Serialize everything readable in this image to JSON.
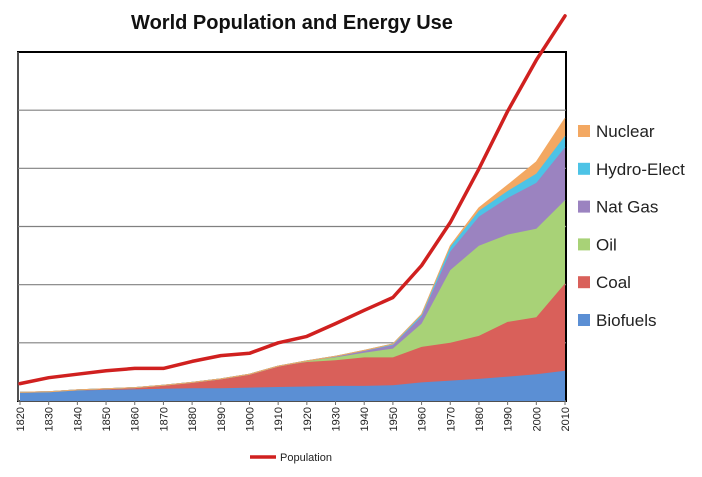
{
  "chart_data": {
    "type": "area",
    "title": "World Population and Energy Use",
    "xlabel": "",
    "ylabel": "",
    "x": [
      1820,
      1830,
      1840,
      1850,
      1860,
      1870,
      1880,
      1890,
      1900,
      1910,
      1920,
      1930,
      1940,
      1950,
      1960,
      1970,
      1980,
      1990,
      2000,
      2010
    ],
    "x_tick_labels": [
      "1820",
      "1830",
      "1840",
      "1850",
      "1860",
      "1870",
      "1880",
      "1890",
      "1900",
      "1910",
      "1920",
      "1930",
      "1940",
      "1950",
      "1960",
      "1970",
      "1980",
      "1990",
      "2000",
      "2010"
    ],
    "ylim": [
      0,
      6
    ],
    "y_gridlines": [
      1,
      2,
      3,
      4,
      5
    ],
    "grid": true,
    "y_tick_labels_shown": false,
    "legend_position": "right",
    "stacked_area_series": [
      {
        "name": "Biofuels",
        "color": "#5B8FD4",
        "values": [
          0.15,
          0.16,
          0.18,
          0.19,
          0.2,
          0.21,
          0.22,
          0.22,
          0.23,
          0.24,
          0.25,
          0.26,
          0.26,
          0.27,
          0.32,
          0.35,
          0.38,
          0.42,
          0.46,
          0.52
        ]
      },
      {
        "name": "Coal",
        "color": "#D9605A",
        "values": [
          0.0,
          0.0,
          0.01,
          0.02,
          0.03,
          0.06,
          0.1,
          0.16,
          0.23,
          0.36,
          0.42,
          0.44,
          0.49,
          0.48,
          0.61,
          0.65,
          0.74,
          0.94,
          0.98,
          1.5
        ]
      },
      {
        "name": "Oil",
        "color": "#A8D277",
        "values": [
          0.0,
          0.0,
          0.0,
          0.0,
          0.0,
          0.0,
          0.0,
          0.0,
          0.0,
          0.0,
          0.02,
          0.05,
          0.08,
          0.15,
          0.4,
          1.25,
          1.55,
          1.5,
          1.52,
          1.43
        ]
      },
      {
        "name": "Nat Gas",
        "color": "#9B83C0",
        "values": [
          0.0,
          0.0,
          0.0,
          0.0,
          0.0,
          0.0,
          0.0,
          0.0,
          0.0,
          0.0,
          0.0,
          0.02,
          0.03,
          0.06,
          0.12,
          0.32,
          0.5,
          0.63,
          0.79,
          0.91
        ]
      },
      {
        "name": "Hydro-Elect",
        "color": "#4DC3E6",
        "values": [
          0.0,
          0.0,
          0.0,
          0.0,
          0.0,
          0.0,
          0.0,
          0.0,
          0.0,
          0.0,
          0.0,
          0.0,
          0.01,
          0.02,
          0.04,
          0.08,
          0.1,
          0.12,
          0.16,
          0.2
        ]
      },
      {
        "name": "Nuclear",
        "color": "#F3A862",
        "values": [
          0.0,
          0.0,
          0.0,
          0.0,
          0.0,
          0.0,
          0.0,
          0.0,
          0.0,
          0.0,
          0.0,
          0.0,
          0.0,
          0.0,
          0.0,
          0.02,
          0.05,
          0.1,
          0.2,
          0.3
        ]
      }
    ],
    "line_series": [
      {
        "name": "Population",
        "color": "#D0201F",
        "values": [
          0.3,
          0.4,
          0.46,
          0.52,
          0.56,
          0.56,
          0.68,
          0.78,
          0.82,
          1.0,
          1.11,
          1.33,
          1.56,
          1.78,
          2.33,
          3.07,
          3.99,
          4.98,
          5.86,
          6.62
        ]
      }
    ],
    "legend_order_top_to_bottom": [
      "Nuclear",
      "Hydro-Elect",
      "Nat Gas",
      "Oil",
      "Coal",
      "Biofuels"
    ]
  }
}
